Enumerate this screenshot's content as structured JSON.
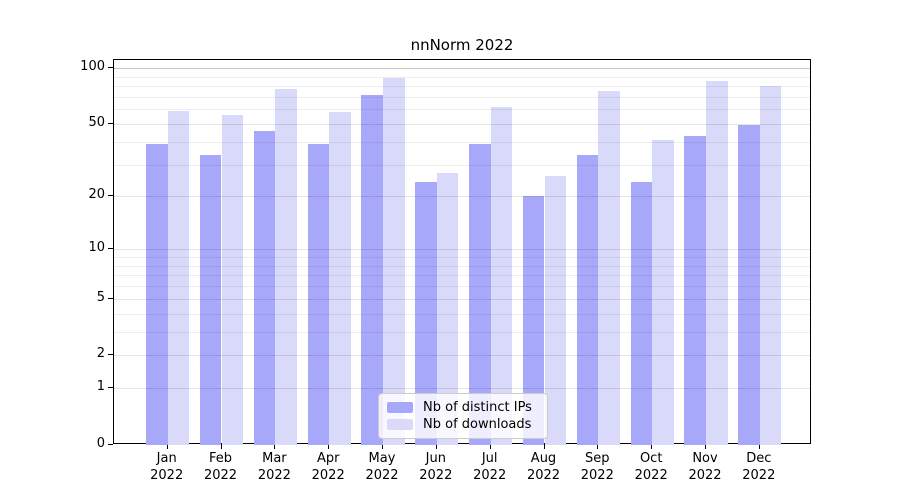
{
  "chart_data": {
    "type": "bar",
    "title": "nnNorm 2022",
    "categories": [
      "Jan",
      "Feb",
      "Mar",
      "Apr",
      "May",
      "Jun",
      "Jul",
      "Aug",
      "Sep",
      "Oct",
      "Nov",
      "Dec"
    ],
    "year_label": "2022",
    "series": [
      {
        "name": "Nb of distinct IPs",
        "color": "#a8a8fa",
        "values": [
          39,
          34,
          46,
          39,
          72,
          24,
          39,
          20,
          34,
          24,
          43,
          49
        ]
      },
      {
        "name": "Nb of downloads",
        "color": "#d9d9fa",
        "values": [
          59,
          56,
          77,
          58,
          88,
          27,
          62,
          26,
          75,
          41,
          85,
          80
        ]
      }
    ],
    "y_ticks": [
      0,
      1,
      2,
      5,
      10,
      20,
      50,
      100
    ],
    "y_minor_gridlines": [
      3,
      4,
      6,
      7,
      8,
      9,
      30,
      40,
      60,
      70,
      80,
      90
    ],
    "y_scale": "log1p",
    "ylim": [
      0,
      112
    ],
    "xlabel": "",
    "ylabel": "",
    "grid": true,
    "legend_position": "lower center"
  }
}
